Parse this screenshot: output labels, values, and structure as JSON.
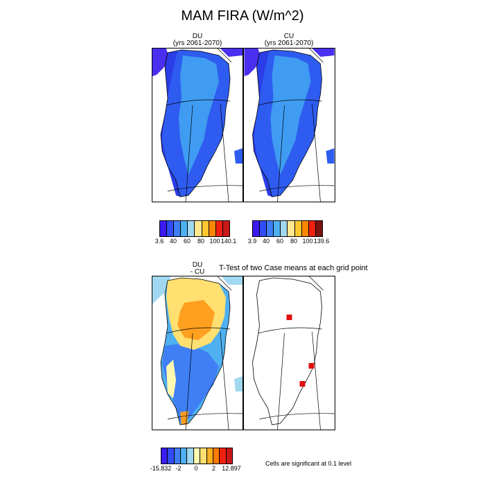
{
  "figure": {
    "title": "MAM FIRA (W/m^2)"
  },
  "panels": {
    "du": {
      "line1": "DU",
      "line2": "(yrs 2061-2070)"
    },
    "cu": {
      "line1": "CU",
      "line2": "(yrs 2061-2070)"
    },
    "diff": {
      "line1": "DU",
      "line2": "- CU"
    },
    "ttest": {
      "title": "T-Test of two Case means at each grid point"
    }
  },
  "colorbars": {
    "top_left": {
      "labels": [
        "3.6",
        "40",
        "60",
        "80",
        "100",
        "140.1"
      ],
      "colors": [
        "#3b1bf0",
        "#2f4cf5",
        "#3f7ef5",
        "#4fb0f0",
        "#a0d8f0",
        "#ffe890",
        "#ffc830",
        "#ff8800",
        "#f02010",
        "#c81818"
      ]
    },
    "top_right": {
      "labels": [
        "3.9",
        "40",
        "60",
        "80",
        "100",
        "139.6"
      ],
      "colors": [
        "#3b1bf0",
        "#2f4cf5",
        "#3f7ef5",
        "#4fb0f0",
        "#a0d8f0",
        "#ffe890",
        "#ffc830",
        "#ff8800",
        "#f02010",
        "#7a1410"
      ]
    },
    "bottom": {
      "labels": [
        "-15.832",
        "-2",
        "0",
        "2",
        "12.897"
      ],
      "colors": [
        "#3b1bf0",
        "#2f4cf5",
        "#3f7ef5",
        "#4fb0f0",
        "#a0d8f0",
        "#fff8b0",
        "#ffe070",
        "#ffb020",
        "#ff7a00",
        "#f02010",
        "#c81818"
      ]
    },
    "significance_note": "Cells are significant at 0.1 level"
  },
  "map_colors": {
    "ocean_blue": "#4a2ff0",
    "ice_blue": "#2f5cf0",
    "light_blue": "#3f9cf2",
    "diff_yellow": "#ffe070",
    "diff_orange": "#ffa020",
    "diff_lightblue": "#a0d8f0",
    "significant_cells": "#e01010"
  }
}
